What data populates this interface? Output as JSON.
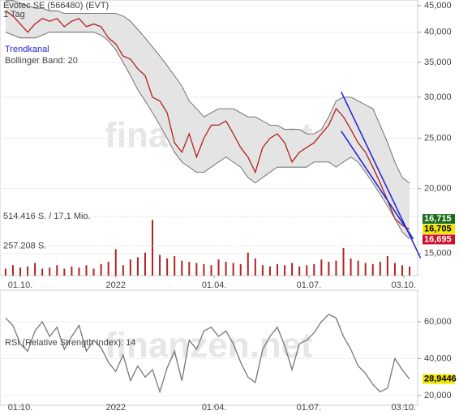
{
  "chart_data": [
    {
      "type": "line",
      "title": "Evotec SE (566480) (EVT)",
      "subtitle": "1 Tag",
      "watermark": "finanzen.net",
      "log_scale": true,
      "x": [
        -2,
        -1,
        0,
        1,
        2,
        3,
        4,
        5,
        6,
        7,
        8,
        9,
        10,
        11,
        12,
        13,
        14,
        15,
        16,
        17,
        18,
        19,
        20,
        21,
        22,
        23,
        24,
        25,
        26,
        27,
        28,
        29,
        30,
        31,
        32,
        33,
        34,
        35,
        36,
        37,
        38,
        39,
        40,
        41,
        42,
        43,
        44,
        45,
        46,
        47,
        48,
        49,
        50,
        51,
        52,
        53
      ],
      "xlim": [
        -2.76,
        54.1
      ],
      "xticks": [
        {
          "value": 0,
          "label": "01.10."
        },
        {
          "value": 13,
          "label": "2022"
        },
        {
          "value": 26.4,
          "label": "01.04."
        },
        {
          "value": 39.3,
          "label": "01.07."
        },
        {
          "value": 52.2,
          "label": "03.10."
        }
      ],
      "ylim": [
        13600,
        46150
      ],
      "yticks": [
        {
          "value": 15000,
          "label": "15,000"
        },
        {
          "value": 20000,
          "label": "20,000"
        },
        {
          "value": 25000,
          "label": "25,000"
        },
        {
          "value": 30000,
          "label": "30,000"
        },
        {
          "value": 35000,
          "label": "35,000"
        },
        {
          "value": 40000,
          "label": "40,000"
        },
        {
          "value": 45000,
          "label": "45,000"
        }
      ],
      "series": [
        {
          "color": "#b22222",
          "values": [
            44000,
            43000,
            41500,
            40000,
            41500,
            42500,
            42000,
            42500,
            41000,
            42000,
            42500,
            41000,
            41500,
            41000,
            39000,
            38000,
            36000,
            35500,
            34000,
            33000,
            30000,
            29500,
            28000,
            24500,
            23500,
            25500,
            23000,
            25000,
            26500,
            26500,
            27000,
            25500,
            24000,
            23000,
            21500,
            24000,
            25000,
            25500,
            24500,
            22500,
            23500,
            24000,
            24500,
            25500,
            26500,
            28500,
            27500,
            26000,
            24500,
            23500,
            22000,
            20500,
            19000,
            17500,
            17000,
            16695
          ]
        },
        {
          "name": "Bollinger Band: 20",
          "color": "#555555",
          "values": [
            46000,
            46000,
            45500,
            45000,
            44500,
            44500,
            44000,
            44000,
            43500,
            43500,
            43500,
            43500,
            43500,
            43500,
            43500,
            43500,
            43000,
            42000,
            40500,
            39000,
            37500,
            36000,
            34500,
            33000,
            31500,
            29500,
            28500,
            27500,
            28000,
            28500,
            28500,
            28500,
            28000,
            27500,
            27500,
            27000,
            26500,
            26500,
            26000,
            26000,
            26000,
            25500,
            25500,
            26000,
            27500,
            29500,
            30000,
            30000,
            29500,
            29000,
            28500,
            26500,
            24500,
            22500,
            21000,
            20500
          ],
          "lower": [
            40000,
            39500,
            39000,
            39000,
            39000,
            39500,
            40000,
            40000,
            40000,
            40000,
            40000,
            40000,
            40000,
            39500,
            38500,
            37000,
            35000,
            33000,
            31000,
            29500,
            28000,
            26500,
            25000,
            23500,
            22500,
            22000,
            21500,
            21500,
            22000,
            22500,
            23000,
            22500,
            22000,
            21000,
            20500,
            21000,
            21500,
            22000,
            22000,
            22000,
            22000,
            22000,
            22500,
            22500,
            22500,
            22000,
            22500,
            23000,
            22500,
            21500,
            20500,
            19500,
            18500,
            17500,
            16500,
            16000
          ]
        }
      ],
      "trend_channel": {
        "name": "Trendkanal",
        "color": "#1f1fd6",
        "lines": [
          {
            "x": [
              43.7,
              54.5
            ],
            "values": [
              30700,
              14700
            ]
          },
          {
            "x": [
              43.7,
              53.5
            ],
            "values": [
              25800,
              16000
            ]
          }
        ]
      },
      "volume": {
        "color": "#b22222",
        "ylim": [
          0,
          2400000
        ],
        "yticks": [
          {
            "value": 257208,
            "label": "257.208 S."
          },
          {
            "value": 514416,
            "label": "514.416 S. / 17,1 Mio."
          }
        ],
        "values": [
          60000,
          90000,
          70000,
          80000,
          110000,
          60000,
          70000,
          90000,
          60000,
          80000,
          70000,
          90000,
          60000,
          100000,
          120000,
          230000,
          90000,
          140000,
          160000,
          200000,
          485000,
          180000,
          150000,
          170000,
          130000,
          120000,
          110000,
          100000,
          90000,
          140000,
          120000,
          110000,
          100000,
          200000,
          150000,
          90000,
          80000,
          100000,
          90000,
          110000,
          80000,
          90000,
          100000,
          140000,
          120000,
          130000,
          240000,
          150000,
          130000,
          110000,
          100000,
          120000,
          170000,
          110000,
          90000,
          80000
        ]
      },
      "quotes": [
        {
          "value": 16715,
          "label": "16,715",
          "color": "#1a6e1a"
        },
        {
          "value": 16705,
          "label": "16,705",
          "color": "#f2e600"
        },
        {
          "value": 16695,
          "label": "16,695",
          "color": "#d0102a"
        }
      ]
    },
    {
      "type": "line",
      "title": "RSI (Relative Strength Index): 14",
      "watermark": "finanzen.net",
      "x": [
        -2,
        -1,
        0,
        1,
        2,
        3,
        4,
        5,
        6,
        7,
        8,
        9,
        10,
        11,
        12,
        13,
        14,
        15,
        16,
        17,
        18,
        19,
        20,
        21,
        22,
        23,
        24,
        25,
        26,
        27,
        28,
        29,
        30,
        31,
        32,
        33,
        34,
        35,
        36,
        37,
        38,
        39,
        40,
        41,
        42,
        43,
        44,
        45,
        46,
        47,
        48,
        49,
        50,
        51,
        52,
        53
      ],
      "xlim": [
        -2.76,
        54.1
      ],
      "xticks": [
        {
          "value": 0,
          "label": "01.10."
        },
        {
          "value": 13,
          "label": "2022"
        },
        {
          "value": 26.4,
          "label": "01.04."
        },
        {
          "value": 39.3,
          "label": "01.07."
        },
        {
          "value": 52.2,
          "label": "03.10."
        }
      ],
      "ylim": [
        14.7,
        77.1
      ],
      "yticks": [
        {
          "value": 20,
          "label": "20,000"
        },
        {
          "value": 40,
          "label": "40,000"
        },
        {
          "value": 60,
          "label": "60,000"
        }
      ],
      "series": [
        {
          "color": "#777777",
          "values": [
            62,
            58,
            48,
            44,
            55,
            60,
            52,
            57,
            45,
            52,
            58,
            44,
            50,
            46,
            38,
            33,
            42,
            28,
            36,
            30,
            34,
            22,
            35,
            44,
            28,
            50,
            45,
            55,
            57,
            52,
            55,
            48,
            38,
            30,
            27,
            45,
            52,
            57,
            47,
            34,
            48,
            50,
            54,
            60,
            64,
            62,
            52,
            45,
            36,
            32,
            26,
            22,
            24,
            40,
            34,
            28.9446
          ]
        }
      ],
      "last_value": {
        "value": 28.9446,
        "label": "28,9446",
        "color": "#f2e600"
      }
    }
  ]
}
